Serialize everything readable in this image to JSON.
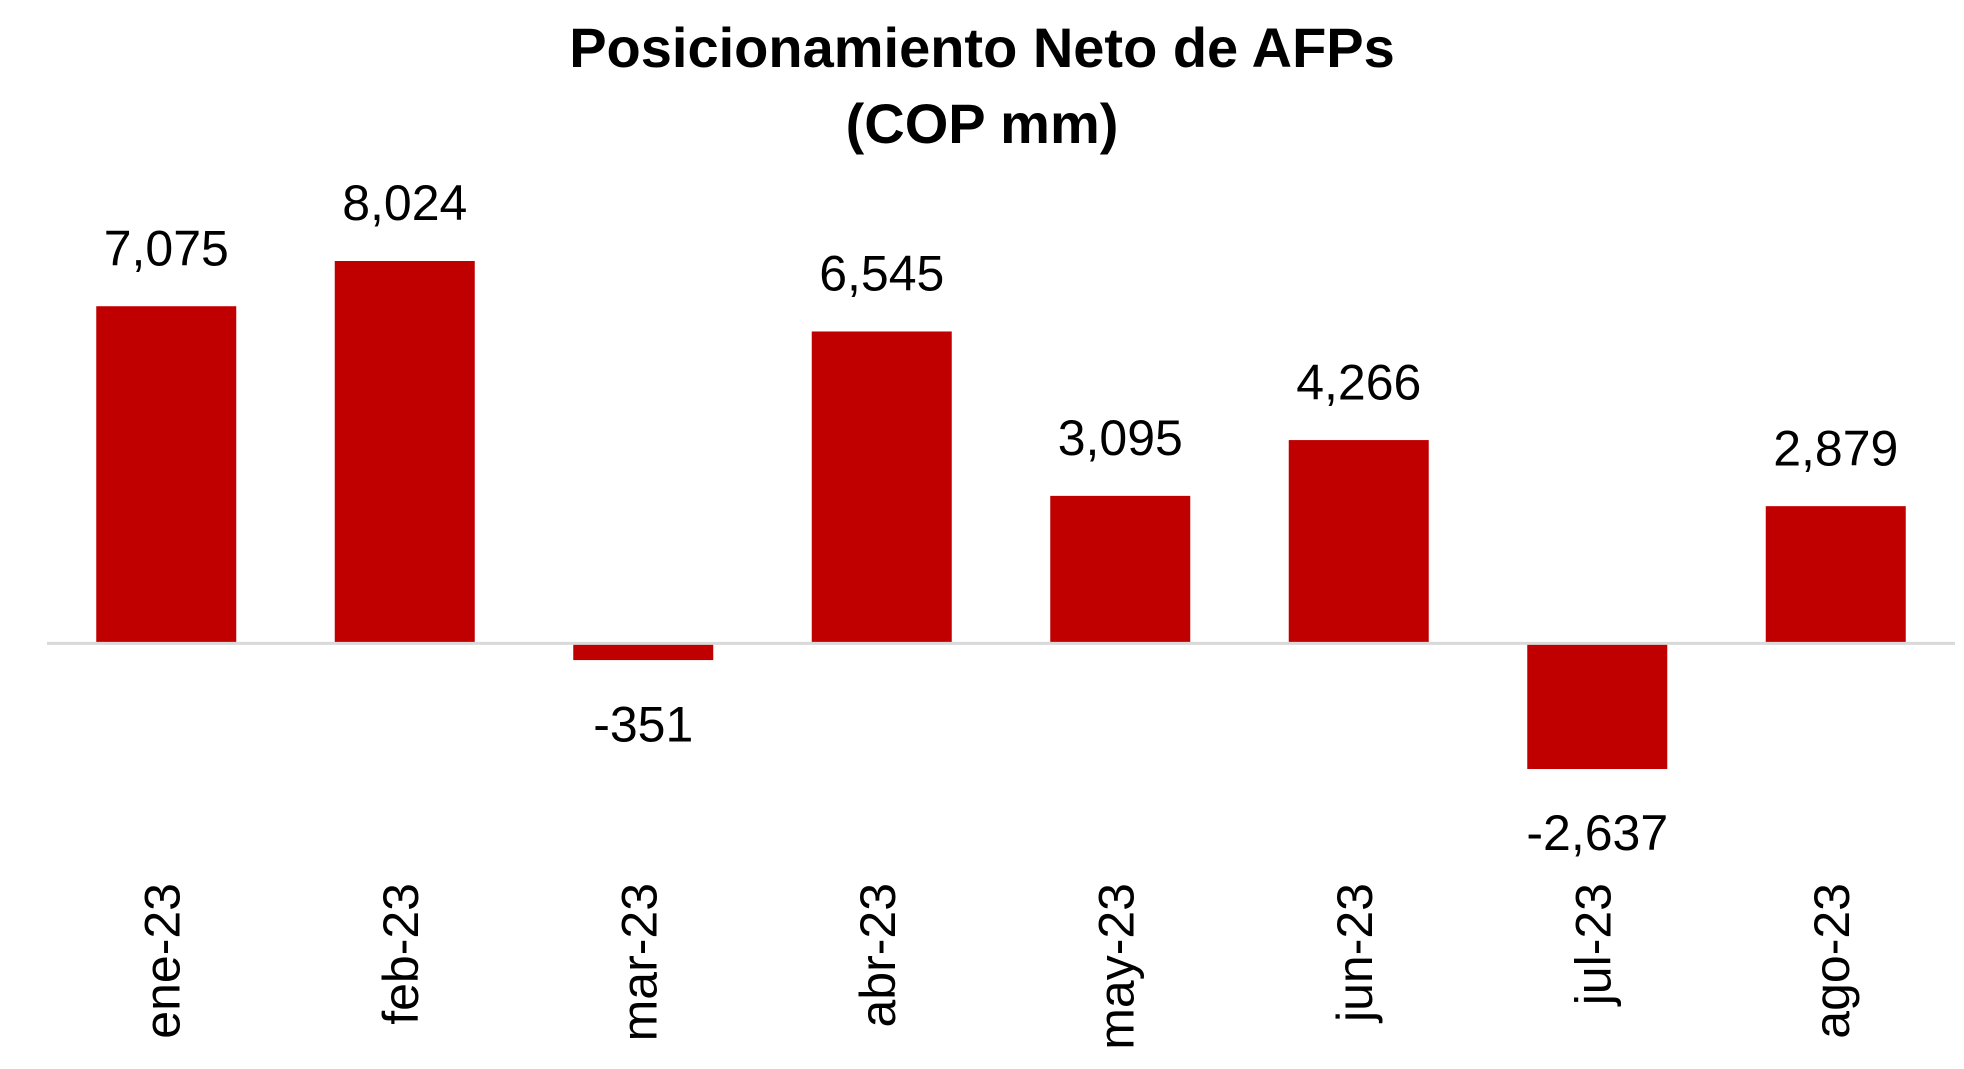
{
  "chart_data": {
    "type": "bar",
    "title": "Posicionamiento Neto de AFPs\n(COP mm)",
    "categories": [
      "ene-23",
      "feb-23",
      "mar-23",
      "abr-23",
      "may-23",
      "jun-23",
      "jul-23",
      "ago-23"
    ],
    "values": [
      7075,
      8024,
      -351,
      6545,
      3095,
      4266,
      -2637,
      2879
    ],
    "value_labels": [
      "7,075",
      "8,024",
      "-351",
      "6,545",
      "3,095",
      "4,266",
      "-2,637",
      "2,879"
    ],
    "color": "#c00000"
  }
}
